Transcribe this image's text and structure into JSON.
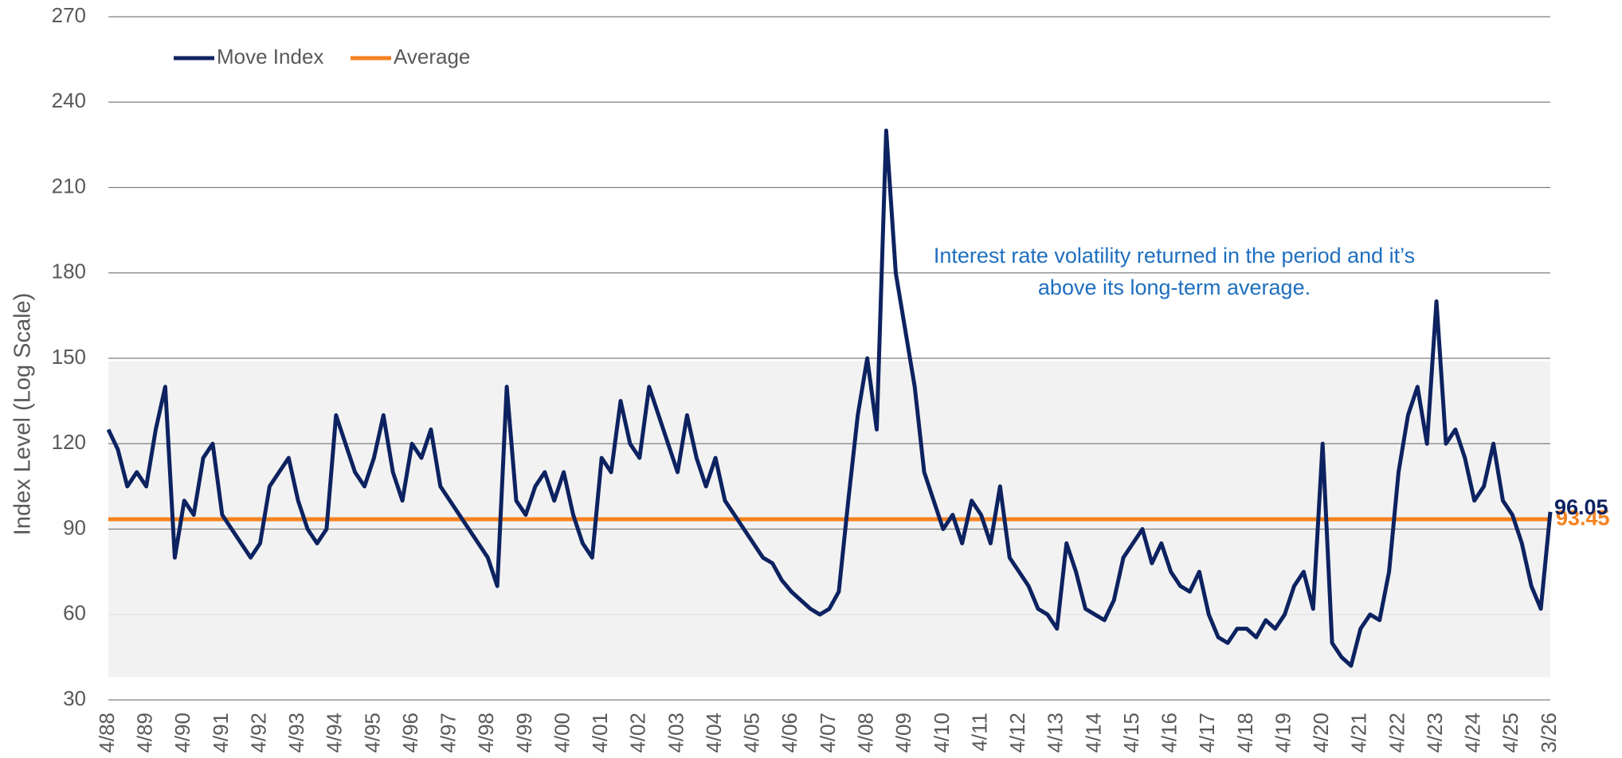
{
  "chart_data": {
    "type": "line",
    "y_axis_label": "Index Level (Log Scale)",
    "annotation": [
      "Interest rate volatility returned in the period and it’s",
      "above its long-term average."
    ],
    "categories": [
      "4/88",
      null,
      null,
      null,
      "4/89",
      null,
      null,
      null,
      "4/90",
      null,
      null,
      null,
      "4/91",
      null,
      null,
      null,
      "4/92",
      null,
      null,
      null,
      "4/93",
      null,
      null,
      null,
      "4/94",
      null,
      null,
      null,
      "4/95",
      null,
      null,
      null,
      "4/96",
      null,
      null,
      null,
      "4/97",
      null,
      null,
      null,
      "4/98",
      null,
      null,
      null,
      "4/99",
      null,
      null,
      null,
      "4/00",
      null,
      null,
      null,
      "4/01",
      null,
      null,
      null,
      "4/02",
      null,
      null,
      null,
      "4/03",
      null,
      null,
      null,
      "4/04",
      null,
      null,
      null,
      "4/05",
      null,
      null,
      null,
      "4/06",
      null,
      null,
      null,
      "4/07",
      null,
      null,
      null,
      "4/08",
      null,
      null,
      null,
      "4/09",
      null,
      null,
      null,
      "4/10",
      null,
      null,
      null,
      "4/11",
      null,
      null,
      null,
      "4/12",
      null,
      null,
      null,
      "4/13",
      null,
      null,
      null,
      "4/14",
      null,
      null,
      null,
      "4/15",
      null,
      null,
      null,
      "4/16",
      null,
      null,
      null,
      "4/17",
      null,
      null,
      null,
      "4/18",
      null,
      null,
      null,
      "4/19",
      null,
      null,
      null,
      "4/20",
      null,
      null,
      null,
      "4/21",
      null,
      null,
      null,
      "4/22",
      null,
      null,
      null,
      "4/23",
      null,
      null,
      null,
      "4/24",
      null,
      null,
      null,
      "4/25",
      null,
      null,
      null,
      "3/26"
    ],
    "series": [
      {
        "name": "Move Index",
        "color": "#0d2260",
        "values": [
          125,
          118,
          105,
          110,
          105,
          125,
          140,
          80,
          100,
          95,
          115,
          120,
          95,
          90,
          85,
          80,
          85,
          105,
          110,
          115,
          100,
          90,
          85,
          90,
          130,
          120,
          110,
          105,
          115,
          130,
          110,
          100,
          120,
          115,
          125,
          105,
          100,
          95,
          90,
          85,
          80,
          70,
          140,
          100,
          95,
          105,
          110,
          100,
          110,
          95,
          85,
          80,
          115,
          110,
          135,
          120,
          115,
          140,
          130,
          120,
          110,
          130,
          115,
          105,
          115,
          100,
          95,
          90,
          85,
          80,
          78,
          72,
          68,
          65,
          62,
          60,
          62,
          68,
          100,
          130,
          150,
          125,
          230,
          180,
          160,
          140,
          110,
          100,
          90,
          95,
          85,
          100,
          95,
          85,
          105,
          80,
          75,
          70,
          62,
          60,
          55,
          85,
          75,
          62,
          60,
          58,
          65,
          80,
          85,
          90,
          78,
          85,
          75,
          70,
          68,
          75,
          60,
          52,
          50,
          55,
          55,
          52,
          58,
          55,
          60,
          70,
          75,
          62,
          120,
          50,
          45,
          42,
          55,
          60,
          58,
          75,
          110,
          130,
          140,
          120,
          170,
          120,
          125,
          115,
          100,
          105,
          120,
          100,
          95,
          85,
          70,
          62,
          96.05
        ]
      }
    ],
    "average_line": {
      "name": "Average",
      "color": "#f5821f",
      "value": 93.45
    },
    "shaded_band": [
      38,
      149
    ],
    "ylim": [
      30,
      270
    ],
    "yticks": [
      30,
      60,
      90,
      120,
      150,
      180,
      210,
      240,
      270
    ],
    "grid": true,
    "legend": "top-left"
  }
}
